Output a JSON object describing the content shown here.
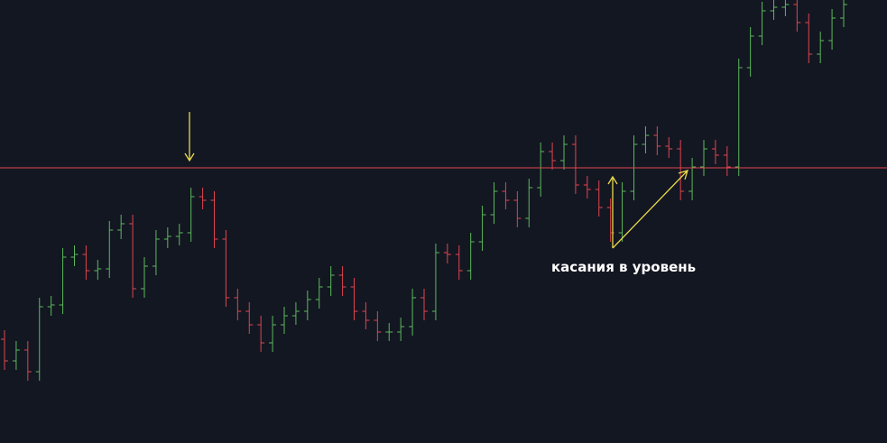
{
  "chart_data": {
    "type": "ohlc",
    "annotation": "касания в уровень",
    "level": 305,
    "up_color": "#5cb85c",
    "down_color": "#e0444f",
    "level_color": "#e0444f",
    "ylim": [
      0,
      491
    ],
    "open": [
      115,
      91,
      103,
      79,
      151,
      153,
      206,
      209,
      191,
      193,
      236,
      243,
      171,
      196,
      226,
      229,
      233,
      273,
      269,
      226,
      161,
      146,
      131,
      111,
      131,
      141,
      146,
      159,
      173,
      186,
      173,
      146,
      136,
      123,
      123,
      129,
      161,
      146,
      211,
      209,
      191,
      223,
      253,
      279,
      269,
      249,
      283,
      323,
      313,
      331,
      286,
      281,
      261,
      233,
      279,
      331,
      341,
      329,
      326,
      279,
      306,
      326,
      319,
      306,
      416,
      451,
      479,
      483,
      486,
      466,
      431,
      446,
      471
    ],
    "high": [
      125,
      113,
      113,
      161,
      163,
      216,
      219,
      219,
      203,
      246,
      253,
      253,
      206,
      236,
      239,
      243,
      283,
      283,
      279,
      236,
      171,
      156,
      141,
      141,
      151,
      156,
      169,
      183,
      196,
      196,
      183,
      156,
      146,
      133,
      139,
      171,
      171,
      221,
      221,
      219,
      233,
      263,
      289,
      289,
      279,
      293,
      333,
      333,
      341,
      341,
      296,
      291,
      271,
      289,
      341,
      351,
      351,
      339,
      336,
      316,
      336,
      336,
      329,
      426,
      461,
      489,
      493,
      496,
      496,
      476,
      456,
      481,
      496
    ],
    "low": [
      81,
      81,
      69,
      69,
      141,
      143,
      196,
      181,
      181,
      183,
      226,
      161,
      161,
      186,
      216,
      219,
      223,
      259,
      216,
      151,
      136,
      121,
      101,
      101,
      121,
      131,
      136,
      149,
      163,
      163,
      136,
      126,
      113,
      113,
      113,
      119,
      136,
      136,
      199,
      181,
      181,
      213,
      243,
      259,
      239,
      239,
      273,
      303,
      303,
      276,
      271,
      251,
      223,
      223,
      269,
      321,
      319,
      316,
      269,
      269,
      296,
      309,
      296,
      296,
      406,
      441,
      469,
      473,
      456,
      421,
      421,
      436,
      461
    ],
    "close": [
      91,
      103,
      79,
      151,
      153,
      206,
      209,
      191,
      193,
      236,
      243,
      171,
      196,
      226,
      229,
      233,
      273,
      269,
      226,
      161,
      146,
      131,
      111,
      131,
      141,
      146,
      159,
      173,
      186,
      173,
      146,
      136,
      123,
      123,
      129,
      161,
      146,
      211,
      209,
      191,
      223,
      253,
      279,
      269,
      249,
      283,
      323,
      313,
      331,
      286,
      281,
      261,
      233,
      279,
      331,
      341,
      329,
      326,
      279,
      306,
      326,
      319,
      306,
      416,
      451,
      479,
      483,
      486,
      466,
      431,
      446,
      471,
      486
    ]
  }
}
